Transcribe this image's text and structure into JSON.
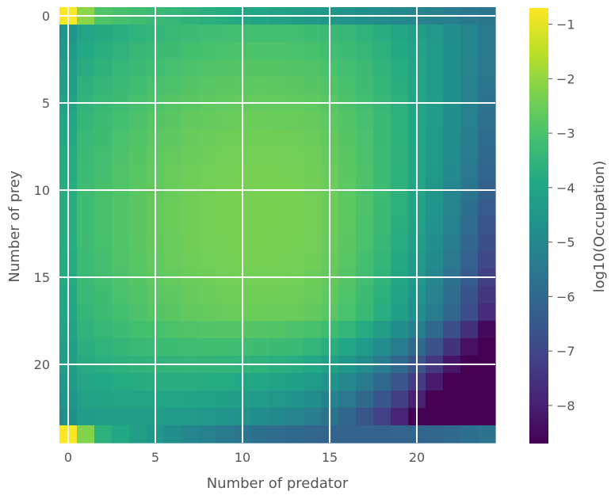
{
  "chart_data": {
    "type": "heatmap",
    "title": "",
    "xlabel": "Number of predator",
    "ylabel": "Number of prey",
    "n_x": 25,
    "n_y": 25,
    "xlim": [
      -0.5,
      24.5
    ],
    "ylim": [
      24.5,
      -0.5
    ],
    "x_ticks": [
      0,
      5,
      10,
      15,
      20
    ],
    "y_ticks": [
      0,
      5,
      10,
      15,
      20
    ],
    "grid": true,
    "grid_color": "#ffffff",
    "colormap": "viridis",
    "colorbar": {
      "label": "log10(Occupation)",
      "range": [
        -8.7,
        -0.7
      ],
      "ticks": [
        -1,
        -2,
        -3,
        -4,
        -5,
        -6,
        -7,
        -8
      ]
    },
    "corner_values": {
      "top_left": -0.7,
      "bottom_left": -0.7,
      "bottom_min": -8.5
    }
  }
}
